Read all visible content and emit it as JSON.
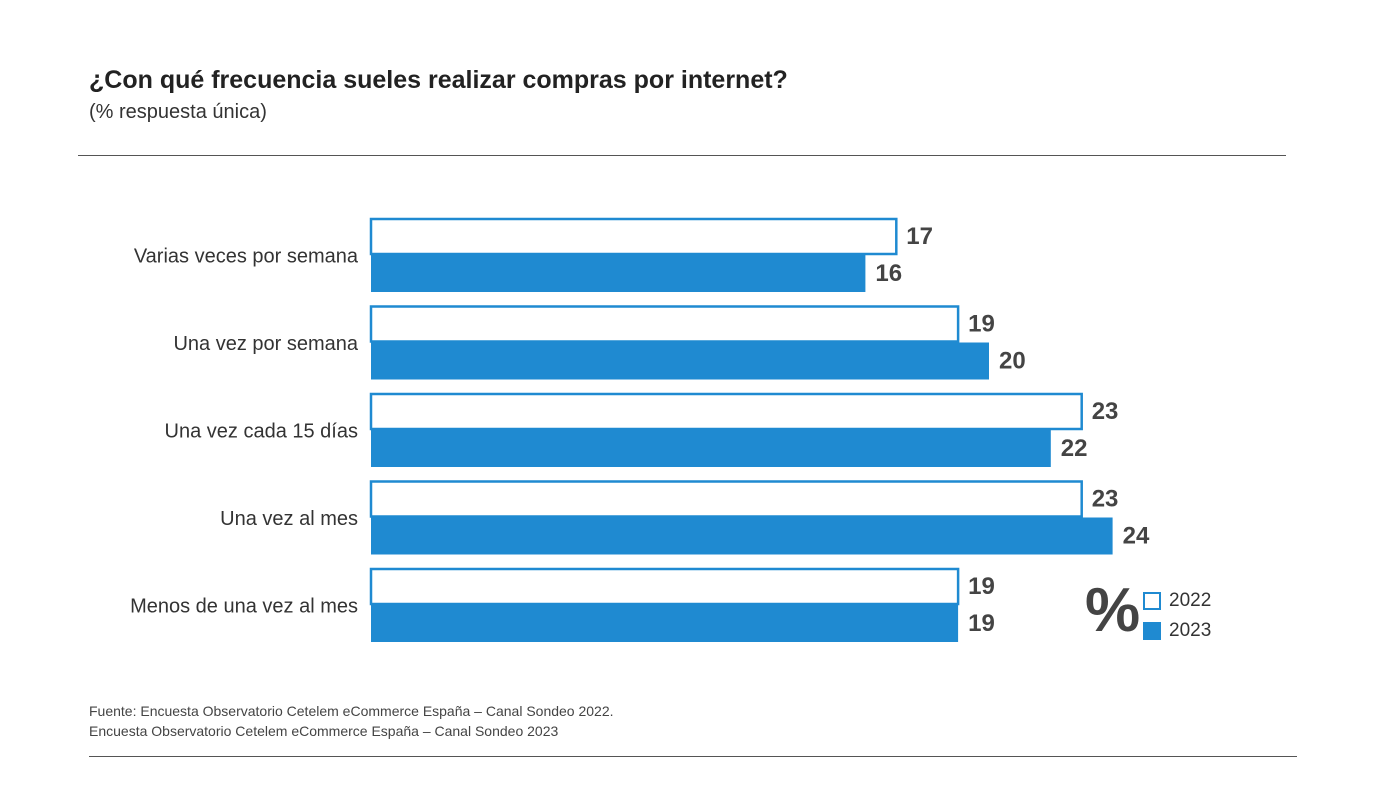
{
  "title": "¿Con qué frecuencia sueles realizar compras por internet?",
  "subtitle": "(% respuesta única)",
  "colors": {
    "series_2022_fill": "#ffffff",
    "series_2023_fill": "#1f8ad1",
    "bar_stroke": "#1f8ad1",
    "value_label": "#444444",
    "category_label": "#333333"
  },
  "legend": {
    "unit_symbol": "%",
    "items": [
      {
        "label": "2022",
        "style": "outline"
      },
      {
        "label": "2023",
        "style": "filled"
      }
    ]
  },
  "chart_data": {
    "type": "bar",
    "orientation": "horizontal",
    "title": "¿Con qué frecuencia sueles realizar compras por internet?",
    "subtitle": "(% respuesta única)",
    "categories": [
      "Varias veces por semana",
      "Una vez por semana",
      "Una vez cada 15 días",
      "Una vez al mes",
      "Menos de una vez al mes"
    ],
    "series": [
      {
        "name": "2022",
        "values": [
          17,
          19,
          23,
          23,
          19
        ]
      },
      {
        "name": "2023",
        "values": [
          16,
          20,
          22,
          24,
          19
        ]
      }
    ],
    "xlim": [
      0,
      24
    ],
    "grid": false,
    "legend_position": "bottom-right"
  },
  "source": {
    "line1": "Fuente: Encuesta Observatorio Cetelem eCommerce España – Canal Sondeo 2022.",
    "line2": "Encuesta Observatorio Cetelem eCommerce España – Canal Sondeo 2023"
  }
}
